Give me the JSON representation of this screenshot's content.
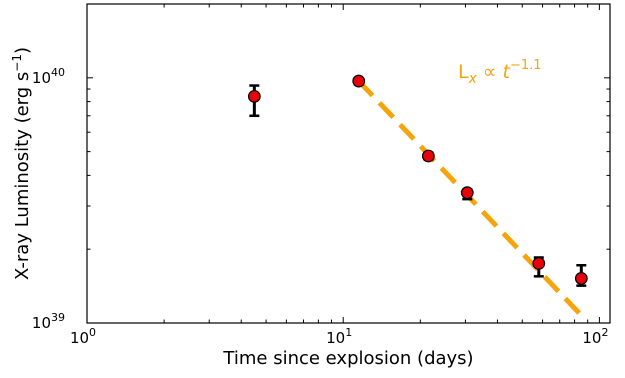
{
  "chart_data": {
    "type": "scatter",
    "title": "",
    "xlabel": "Time since explosion (days)",
    "ylabel": "X-ray Luminosity (erg s$^{-1}$)",
    "xscale": "log",
    "yscale": "log",
    "xlim": [
      1,
      110
    ],
    "ylim": [
      1e+39,
      2e+40
    ],
    "x_major_ticks": [
      1,
      10,
      100
    ],
    "y_major_ticks": [
      1e+39,
      1e+40
    ],
    "x_tick_labels": [
      {
        "base": "10",
        "exp": "0"
      },
      {
        "base": "10",
        "exp": "1"
      },
      {
        "base": "10",
        "exp": "2"
      }
    ],
    "y_tick_labels": [
      {
        "base": "10",
        "exp": "39"
      },
      {
        "base": "10",
        "exp": "40"
      }
    ],
    "grid": false,
    "points": [
      {
        "x": 4.5,
        "y": 8.4e+39,
        "y_err_low": 1.4e+39,
        "y_err_high": 9e+38
      },
      {
        "x": 11.5,
        "y": 9.7e+39,
        "y_err_low": 3e+38,
        "y_err_high": 2e+38
      },
      {
        "x": 21.5,
        "y": 4.8e+39,
        "y_err_low": 1.5e+38,
        "y_err_high": 1.5e+38
      },
      {
        "x": 30.5,
        "y": 3.4e+39,
        "y_err_low": 2e+38,
        "y_err_high": 1e+38
      },
      {
        "x": 58.0,
        "y": 1.75e+39,
        "y_err_low": 2e+38,
        "y_err_high": 1e+38
      },
      {
        "x": 85.0,
        "y": 1.52e+39,
        "y_err_low": 1e+38,
        "y_err_high": 2e+38
      }
    ],
    "fit_line": {
      "x_start": 11.5,
      "x_end": 88,
      "y_start": 9.7e+39,
      "slope": -1.1,
      "color": "#f5a40c"
    },
    "annotation": {
      "prefix": "L",
      "sub": "x",
      "mid": " ∝ ",
      "t": "t",
      "exp": "−1.1",
      "color": "#f5a40c"
    },
    "marker_color": "#e8000b",
    "errorbar_color": "#000000"
  }
}
